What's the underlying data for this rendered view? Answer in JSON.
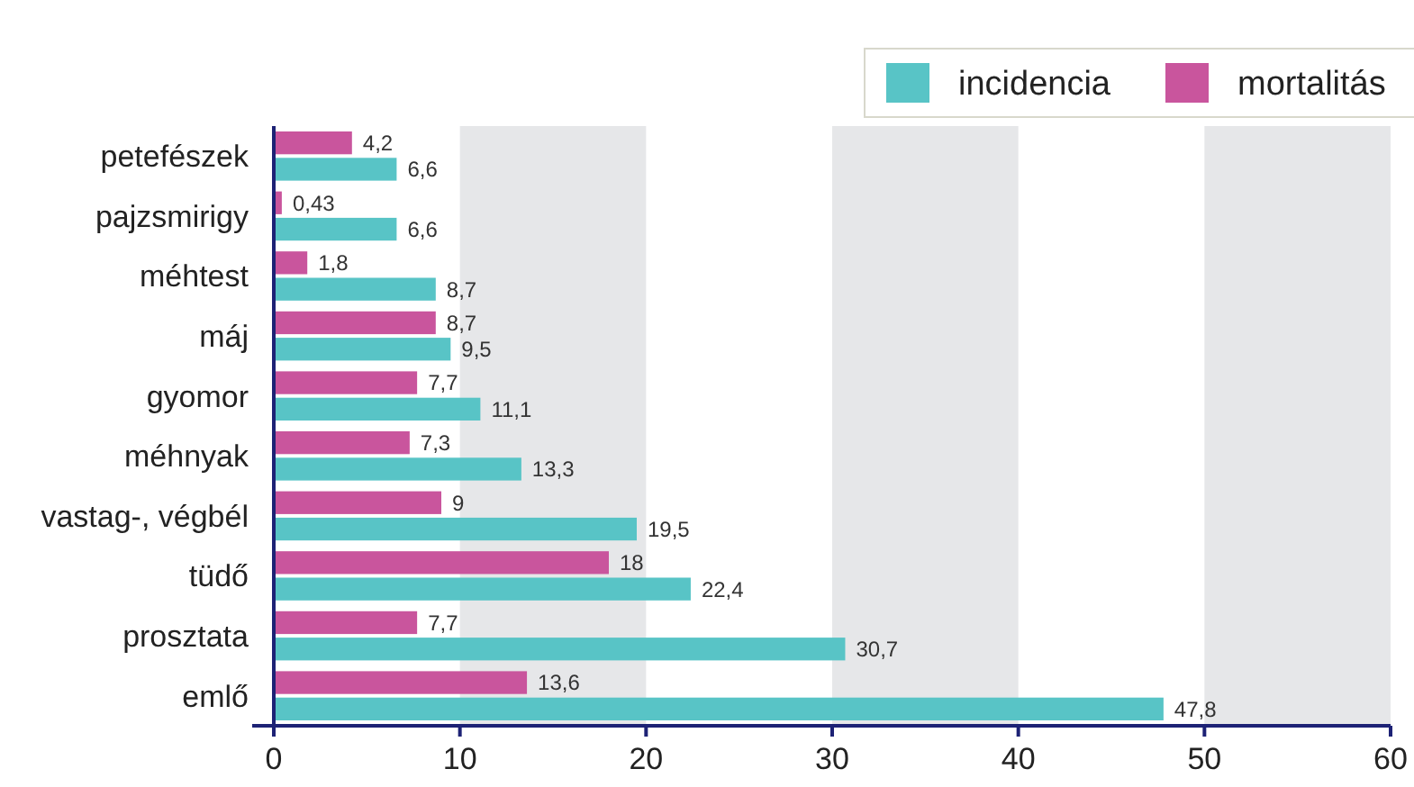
{
  "chart_data": {
    "type": "bar",
    "orientation": "horizontal",
    "categories": [
      "petefészek",
      "pajzsmirigy",
      "méhtest",
      "máj",
      "gyomor",
      "méhnyak",
      "vastag-, végbél",
      "tüdő",
      "prosztata",
      "emlő"
    ],
    "series": [
      {
        "name": "incidencia",
        "color": "#58c4c6",
        "values": [
          6.6,
          6.6,
          8.7,
          9.5,
          11.1,
          13.3,
          19.5,
          22.4,
          30.7,
          47.8
        ],
        "value_labels": [
          "6,6",
          "6,6",
          "8,7",
          "9,5",
          "11,1",
          "13,3",
          "19,5",
          "22,4",
          "30,7",
          "47,8"
        ]
      },
      {
        "name": "mortalitás",
        "color": "#c9559d",
        "values": [
          4.2,
          0.43,
          1.8,
          8.7,
          7.7,
          7.3,
          9,
          18,
          7.7,
          13.6
        ],
        "value_labels": [
          "4,2",
          "0,43",
          "1,8",
          "8,7",
          "7,7",
          "7,3",
          "9",
          "18",
          "7,7",
          "13,6"
        ]
      }
    ],
    "xlim": [
      0,
      60
    ],
    "xticks": [
      0,
      10,
      20,
      30,
      40,
      50,
      60
    ],
    "bands": [
      {
        "axis": "x",
        "from": 10,
        "to": 20,
        "color": "#e6e7e9"
      },
      {
        "axis": "x",
        "from": 30,
        "to": 40,
        "color": "#e6e7e9"
      },
      {
        "axis": "x",
        "from": 50,
        "to": 60,
        "color": "#e6e7e9"
      }
    ],
    "legend": "top right"
  }
}
